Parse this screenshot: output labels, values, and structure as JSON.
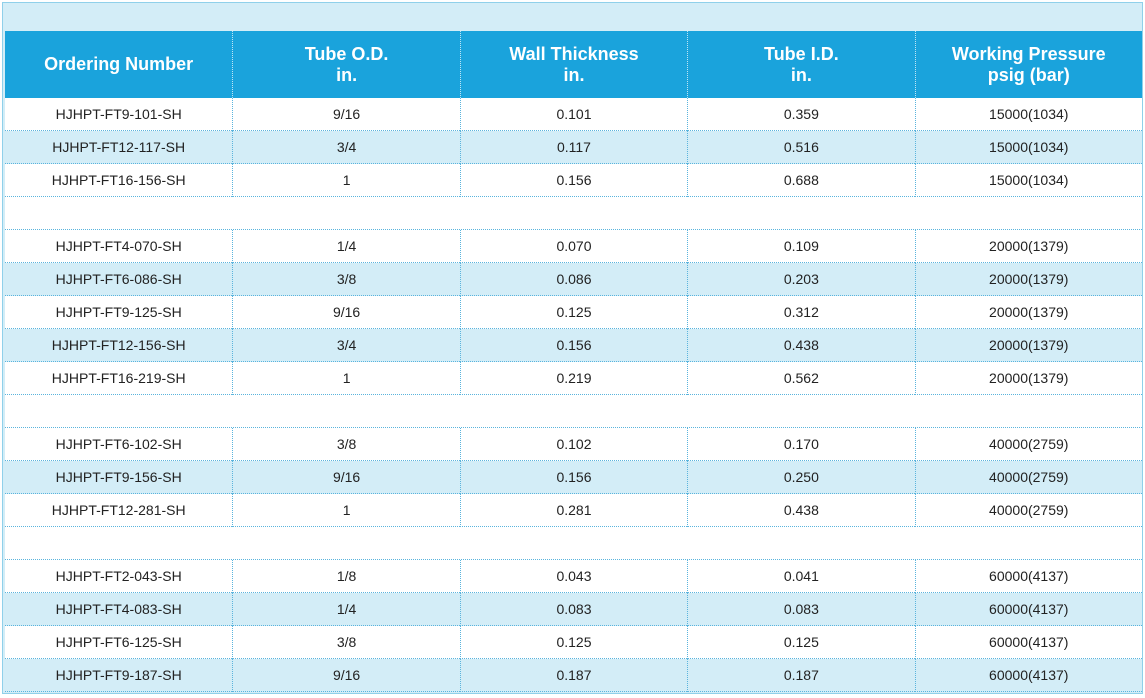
{
  "table": {
    "headers": [
      [
        "Ordering Number"
      ],
      [
        "Tube O.D.",
        "in."
      ],
      [
        "Wall Thickness",
        "in."
      ],
      [
        "Tube I.D.",
        "in."
      ],
      [
        "Working Pressure",
        "psig (bar)"
      ]
    ],
    "groups": [
      [
        [
          "HJHPT-FT9-101-SH",
          "9/16",
          "0.101",
          "0.359",
          "15000(1034)"
        ],
        [
          "HJHPT-FT12-117-SH",
          "3/4",
          "0.117",
          "0.516",
          "15000(1034)"
        ],
        [
          "HJHPT-FT16-156-SH",
          "1",
          "0.156",
          "0.688",
          "15000(1034)"
        ]
      ],
      [
        [
          "HJHPT-FT4-070-SH",
          "1/4",
          "0.070",
          "0.109",
          "20000(1379)"
        ],
        [
          "HJHPT-FT6-086-SH",
          "3/8",
          "0.086",
          "0.203",
          "20000(1379)"
        ],
        [
          "HJHPT-FT9-125-SH",
          "9/16",
          "0.125",
          "0.312",
          "20000(1379)"
        ],
        [
          "HJHPT-FT12-156-SH",
          "3/4",
          "0.156",
          "0.438",
          "20000(1379)"
        ],
        [
          "HJHPT-FT16-219-SH",
          "1",
          "0.219",
          "0.562",
          "20000(1379)"
        ]
      ],
      [
        [
          "HJHPT-FT6-102-SH",
          "3/8",
          "0.102",
          "0.170",
          "40000(2759)"
        ],
        [
          "HJHPT-FT9-156-SH",
          "9/16",
          "0.156",
          "0.250",
          "40000(2759)"
        ],
        [
          "HJHPT-FT12-281-SH",
          "1",
          "0.281",
          "0.438",
          "40000(2759)"
        ]
      ],
      [
        [
          "HJHPT-FT2-043-SH",
          "1/8",
          "0.043",
          "0.041",
          "60000(4137)"
        ],
        [
          "HJHPT-FT4-083-SH",
          "1/4",
          "0.083",
          "0.083",
          "60000(4137)"
        ],
        [
          "HJHPT-FT6-125-SH",
          "3/8",
          "0.125",
          "0.125",
          "60000(4137)"
        ],
        [
          "HJHPT-FT9-187-SH",
          "9/16",
          "0.187",
          "0.187",
          "60000(4137)"
        ]
      ]
    ]
  }
}
